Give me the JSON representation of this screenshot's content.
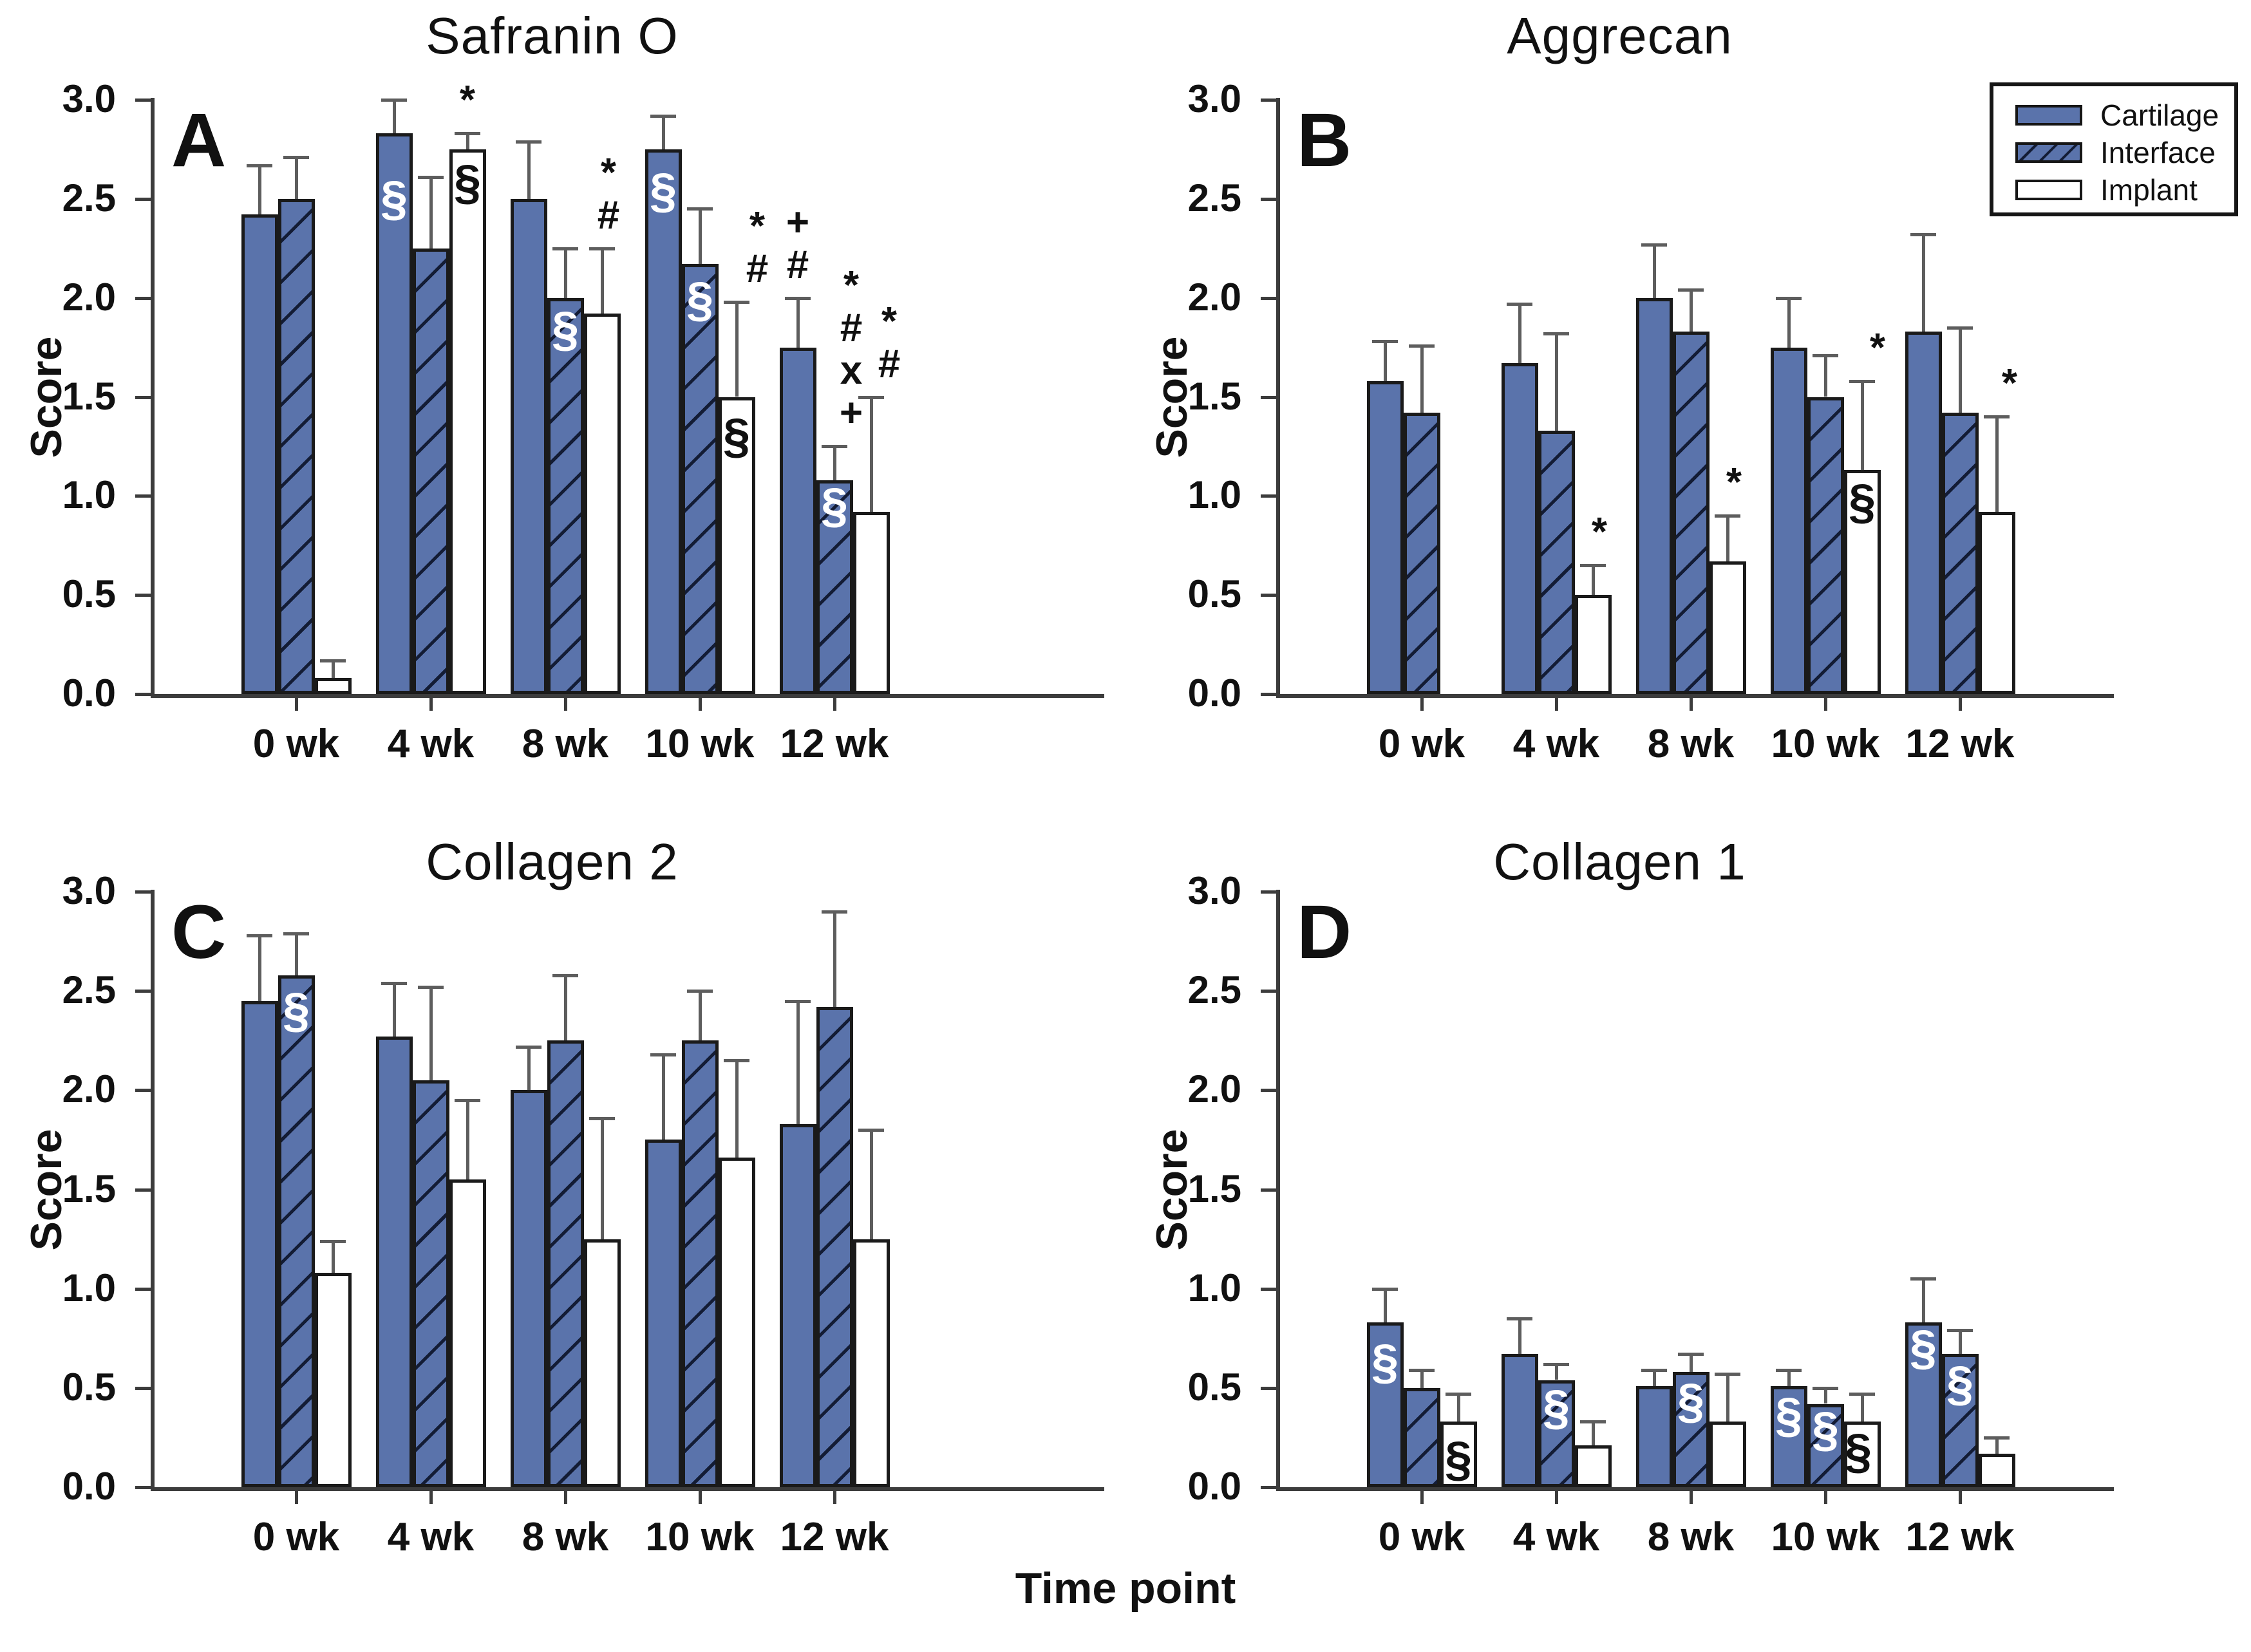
{
  "figure": {
    "xlabel": "Time point",
    "ylabel": "Score",
    "background": "#ffffff",
    "colors": {
      "bar_fill": "#5a73ab",
      "bar_border": "#1a1a1a",
      "hatch_line": "#131c35",
      "implant_fill": "#ffffff",
      "error_bar": "#5d5d5d",
      "text": "#111111",
      "annotation_white": "#ffffff",
      "annotation_black": "#111111"
    },
    "legend": {
      "panel": "B",
      "items": [
        {
          "label": "Cartilage",
          "style": "solid",
          "swatch_icon": "solid-bar-swatch"
        },
        {
          "label": "Interface",
          "style": "hatch",
          "swatch_icon": "hatched-bar-swatch"
        },
        {
          "label": "Implant",
          "style": "open",
          "swatch_icon": "open-bar-swatch"
        }
      ]
    }
  },
  "chart_data": [
    {
      "id": "A",
      "title": "Safranin O",
      "type": "bar",
      "ylabel": "Score",
      "ylim": [
        0,
        3
      ],
      "ytick_labels": [
        "0.0",
        "0.5",
        "1.0",
        "1.5",
        "2.0",
        "2.5",
        "3.0"
      ],
      "yticks": [
        0,
        0.5,
        1,
        1.5,
        2,
        2.5,
        3
      ],
      "categories": [
        "0 wk",
        "4 wk",
        "8 wk",
        "10 wk",
        "12 wk"
      ],
      "series": [
        {
          "name": "Cartilage",
          "values": [
            2.42,
            2.83,
            2.5,
            2.75,
            1.75
          ],
          "errors": [
            0.25,
            0.17,
            0.29,
            0.17,
            0.25
          ]
        },
        {
          "name": "Interface",
          "values": [
            2.5,
            2.25,
            2.0,
            2.17,
            1.08
          ],
          "errors": [
            0.21,
            0.36,
            0.25,
            0.28,
            0.17
          ]
        },
        {
          "name": "Implant",
          "values": [
            0.08,
            2.75,
            1.92,
            1.5,
            0.92
          ],
          "errors": [
            0.09,
            0.08,
            0.33,
            0.48,
            0.58
          ]
        }
      ],
      "annotations": [
        {
          "cat": 1,
          "series": "Cartilage",
          "placement": "on",
          "text": "§",
          "color": "white",
          "y": 2.5
        },
        {
          "cat": 1,
          "series": "Implant",
          "placement": "above",
          "symbols": [
            "*"
          ],
          "dx": 0
        },
        {
          "cat": 1,
          "series": "Implant",
          "placement": "on",
          "text": "§",
          "color": "black",
          "y": 2.58
        },
        {
          "cat": 2,
          "series": "Interface",
          "placement": "on",
          "text": "§",
          "color": "white",
          "y": 1.84
        },
        {
          "cat": 2,
          "series": "Implant",
          "placement": "above",
          "symbols": [
            "*",
            "#"
          ],
          "dx": 10
        },
        {
          "cat": 3,
          "series": "Cartilage",
          "placement": "on",
          "text": "§",
          "color": "white",
          "y": 2.54
        },
        {
          "cat": 3,
          "series": "Interface",
          "placement": "on",
          "text": "§",
          "color": "white",
          "y": 1.99
        },
        {
          "cat": 3,
          "series": "Implant",
          "placement": "above",
          "symbols": [
            "*",
            "#"
          ],
          "dx": 32
        },
        {
          "cat": 3,
          "series": "Implant",
          "placement": "on",
          "text": "§",
          "color": "black",
          "y": 1.3
        },
        {
          "cat": 4,
          "series": "Cartilage",
          "placement": "above",
          "symbols": [
            "+",
            "#"
          ],
          "dx": 0
        },
        {
          "cat": 4,
          "series": "Interface",
          "placement": "above",
          "symbols": [
            "*",
            "#",
            "x",
            "+"
          ],
          "dx": 26
        },
        {
          "cat": 4,
          "series": "Interface",
          "placement": "on",
          "text": "§",
          "color": "white",
          "y": 0.95
        },
        {
          "cat": 4,
          "series": "Implant",
          "placement": "above",
          "symbols": [
            "*",
            "#"
          ],
          "dx": 28
        }
      ]
    },
    {
      "id": "B",
      "title": "Aggrecan",
      "type": "bar",
      "ylabel": "Score",
      "ylim": [
        0,
        3
      ],
      "ytick_labels": [
        "0.0",
        "0.5",
        "1.0",
        "1.5",
        "2.0",
        "2.5",
        "3.0"
      ],
      "yticks": [
        0,
        0.5,
        1,
        1.5,
        2,
        2.5,
        3
      ],
      "categories": [
        "0 wk",
        "4 wk",
        "8 wk",
        "10 wk",
        "12 wk"
      ],
      "series": [
        {
          "name": "Cartilage",
          "values": [
            1.58,
            1.67,
            2.0,
            1.75,
            1.83
          ],
          "errors": [
            0.2,
            0.3,
            0.27,
            0.25,
            0.49
          ]
        },
        {
          "name": "Interface",
          "values": [
            1.42,
            1.33,
            1.83,
            1.5,
            1.42
          ],
          "errors": [
            0.34,
            0.49,
            0.21,
            0.21,
            0.43
          ]
        },
        {
          "name": "Implant",
          "values": [
            0.0,
            0.5,
            0.67,
            1.13,
            0.92
          ],
          "errors": [
            0.0,
            0.15,
            0.23,
            0.45,
            0.48
          ]
        }
      ],
      "annotations": [
        {
          "cat": 1,
          "series": "Implant",
          "placement": "above",
          "symbols": [
            "*"
          ],
          "dx": 10
        },
        {
          "cat": 2,
          "series": "Implant",
          "placement": "above",
          "symbols": [
            "*"
          ],
          "dx": 10
        },
        {
          "cat": 3,
          "series": "Implant",
          "placement": "above",
          "symbols": [
            "*"
          ],
          "dx": 24
        },
        {
          "cat": 3,
          "series": "Implant",
          "placement": "on",
          "text": "§",
          "color": "black",
          "y": 0.97
        },
        {
          "cat": 4,
          "series": "Implant",
          "placement": "above",
          "symbols": [
            "*"
          ],
          "dx": 20
        }
      ]
    },
    {
      "id": "C",
      "title": "Collagen 2",
      "type": "bar",
      "ylabel": "Score",
      "ylim": [
        0,
        3
      ],
      "ytick_labels": [
        "0.0",
        "0.5",
        "1.0",
        "1.5",
        "2.0",
        "2.5",
        "3.0"
      ],
      "yticks": [
        0,
        0.5,
        1,
        1.5,
        2,
        2.5,
        3
      ],
      "categories": [
        "0 wk",
        "4 wk",
        "8 wk",
        "10 wk",
        "12 wk"
      ],
      "series": [
        {
          "name": "Cartilage",
          "values": [
            2.45,
            2.27,
            2.0,
            1.75,
            1.83
          ],
          "errors": [
            0.33,
            0.27,
            0.22,
            0.43,
            0.62
          ]
        },
        {
          "name": "Interface",
          "values": [
            2.58,
            2.05,
            2.25,
            2.25,
            2.42
          ],
          "errors": [
            0.21,
            0.47,
            0.33,
            0.25,
            0.48
          ]
        },
        {
          "name": "Implant",
          "values": [
            1.08,
            1.55,
            1.25,
            1.66,
            1.25
          ],
          "errors": [
            0.16,
            0.4,
            0.61,
            0.49,
            0.55
          ]
        }
      ],
      "annotations": [
        {
          "cat": 0,
          "series": "Interface",
          "placement": "on",
          "text": "§",
          "color": "white",
          "y": 2.4
        }
      ]
    },
    {
      "id": "D",
      "title": "Collagen 1",
      "type": "bar",
      "ylabel": "Score",
      "ylim": [
        0,
        3
      ],
      "ytick_labels": [
        "0.0",
        "0.5",
        "1.0",
        "1.5",
        "2.0",
        "2.5",
        "3.0"
      ],
      "yticks": [
        0,
        0.5,
        1,
        1.5,
        2,
        2.5,
        3
      ],
      "categories": [
        "0 wk",
        "4 wk",
        "8 wk",
        "10 wk",
        "12 wk"
      ],
      "series": [
        {
          "name": "Cartilage",
          "values": [
            0.83,
            0.67,
            0.51,
            0.51,
            0.83
          ],
          "errors": [
            0.17,
            0.18,
            0.08,
            0.08,
            0.22
          ]
        },
        {
          "name": "Interface",
          "values": [
            0.5,
            0.54,
            0.58,
            0.42,
            0.67
          ],
          "errors": [
            0.09,
            0.08,
            0.09,
            0.08,
            0.12
          ]
        },
        {
          "name": "Implant",
          "values": [
            0.33,
            0.21,
            0.33,
            0.33,
            0.17
          ],
          "errors": [
            0.14,
            0.12,
            0.24,
            0.14,
            0.08
          ]
        }
      ],
      "annotations": [
        {
          "cat": 0,
          "series": "Cartilage",
          "placement": "on",
          "text": "§",
          "color": "white",
          "y": 0.63
        },
        {
          "cat": 0,
          "series": "Implant",
          "placement": "on",
          "text": "§",
          "color": "black",
          "y": 0.14
        },
        {
          "cat": 1,
          "series": "Interface",
          "placement": "on",
          "text": "§",
          "color": "white",
          "y": 0.4
        },
        {
          "cat": 2,
          "series": "Interface",
          "placement": "on",
          "text": "§",
          "color": "white",
          "y": 0.43
        },
        {
          "cat": 3,
          "series": "Cartilage",
          "placement": "on",
          "text": "§",
          "color": "white",
          "y": 0.36
        },
        {
          "cat": 3,
          "series": "Interface",
          "placement": "on",
          "text": "§",
          "color": "white",
          "y": 0.29
        },
        {
          "cat": 3,
          "series": "Implant",
          "placement": "on",
          "text": "§",
          "color": "black",
          "y": 0.18,
          "dx": -6
        },
        {
          "cat": 4,
          "series": "Cartilage",
          "placement": "on",
          "text": "§",
          "color": "white",
          "y": 0.7
        },
        {
          "cat": 4,
          "series": "Interface",
          "placement": "on",
          "text": "§",
          "color": "white",
          "y": 0.52
        }
      ]
    }
  ]
}
